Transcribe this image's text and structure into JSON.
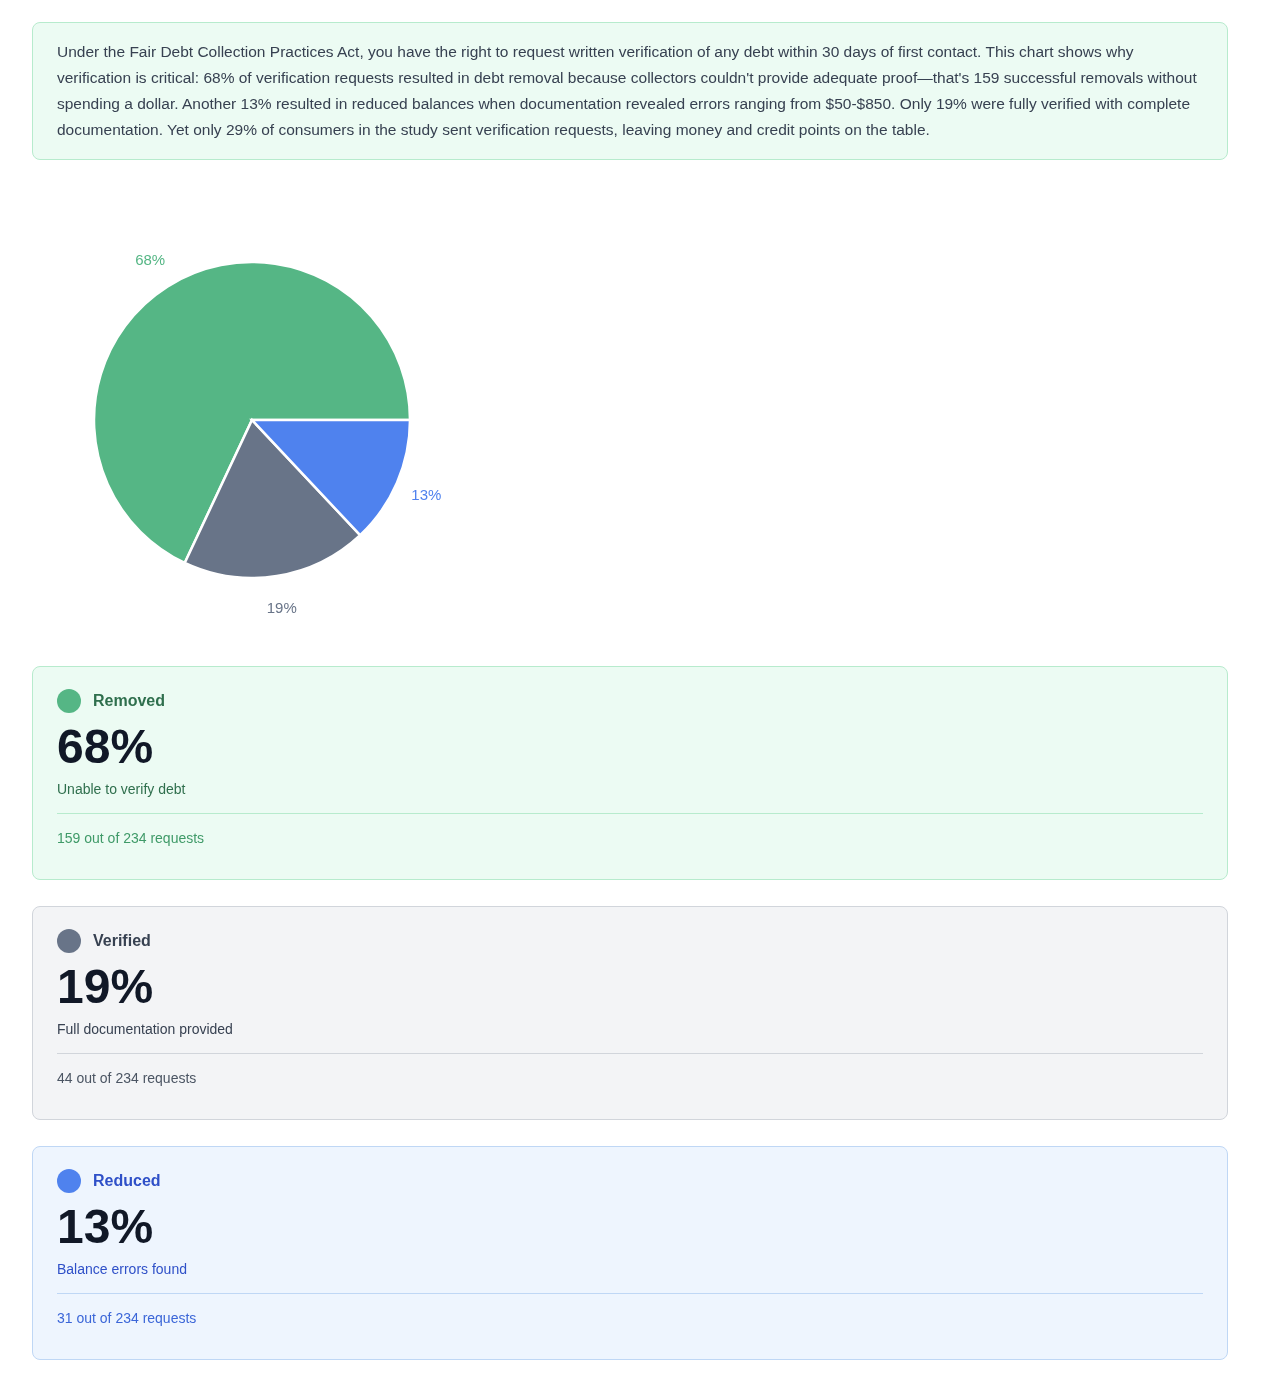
{
  "chart_data": {
    "type": "pie",
    "categories": [
      "Removed",
      "Verified",
      "Reduced"
    ],
    "values": [
      68,
      19,
      13
    ],
    "colors": [
      "#55b685",
      "#687488",
      "#4f82ee"
    ],
    "value_labels": [
      "68%",
      "19%",
      "13%"
    ],
    "legend": "bottom",
    "annotations": [
      "Under the Fair Debt Collection Practices Act, you have the right to request written verification of any debt within 30 days of first contact. This chart shows why verification is critical: 68% of verification requests resulted in debt removal because collectors couldn't provide adequate proof—that's 159 successful removals without spending a dollar. Another 13% resulted in reduced balances when documentation revealed errors ranging from $50-$850. Only 19% were fully verified with complete documentation. Yet only 29% of consumers in the study sent verification requests, leaving money and credit points on the table.",
      "Unable to verify debt",
      "159 out of 234 requests",
      "Full documentation provided",
      "44 out of 234 requests",
      "Balance errors found",
      "31 out of 234 requests"
    ]
  }
}
